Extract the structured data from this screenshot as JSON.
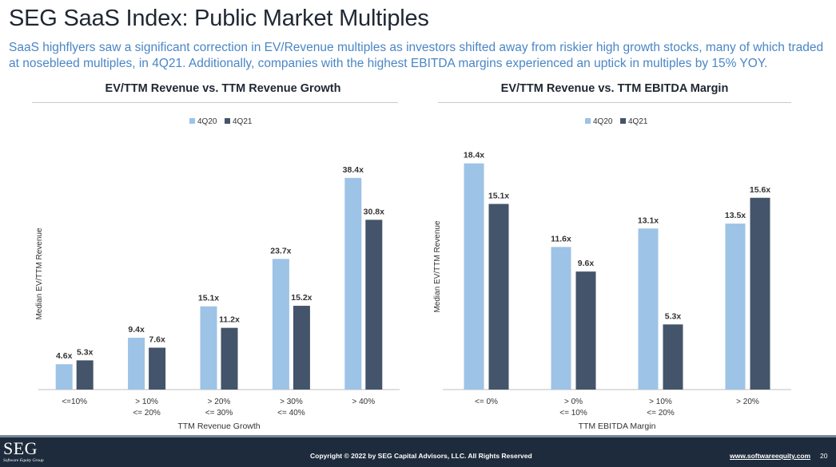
{
  "page": {
    "title": "SEG SaaS Index: Public Market Multiples",
    "subtitle": "SaaS highflyers saw a significant correction in EV/Revenue multiples as investors shifted away from riskier high growth stocks, many of which traded at nosebleed multiples, in 4Q21. Additionally, companies with the highest EBITDA margins experienced an uptick in multiples by 15% YOY."
  },
  "colors": {
    "series_4q20": "#9dc3e6",
    "series_4q21": "#44546a",
    "title_dark": "#1f2733",
    "subtitle_blue": "#4a86c5",
    "footer_bg": "#1e2b3c"
  },
  "footer": {
    "logo": "SEG",
    "logo_sub": "Software Equity Group",
    "copyright": "Copyright © 2022 by SEG Capital Advisors, LLC. All Rights Reserved",
    "website": "www.softwareequity.com",
    "page_number": "20"
  },
  "chart_data": [
    {
      "type": "bar",
      "title": "EV/TTM Revenue vs. TTM Revenue Growth",
      "xlabel": "TTM Revenue Growth",
      "ylabel": "Median EV/TTM Revenue",
      "legend_position": "top-center",
      "grid": false,
      "ylim": [
        0,
        42
      ],
      "categories": [
        [
          "<=10%"
        ],
        [
          "> 10%",
          "<= 20%"
        ],
        [
          "> 20%",
          "<= 30%"
        ],
        [
          "> 30%",
          "<= 40%"
        ],
        [
          "> 40%"
        ]
      ],
      "series": [
        {
          "name": "4Q20",
          "values": [
            4.6,
            9.4,
            15.1,
            23.7,
            38.4
          ],
          "labels": [
            "4.6x",
            "9.4x",
            "15.1x",
            "23.7x",
            "38.4x"
          ]
        },
        {
          "name": "4Q21",
          "values": [
            5.3,
            7.6,
            11.2,
            15.2,
            30.8
          ],
          "labels": [
            "5.3x",
            "7.6x",
            "11.2x",
            "15.2x",
            "30.8x"
          ]
        }
      ]
    },
    {
      "type": "bar",
      "title": "EV/TTM Revenue vs. TTM EBITDA Margin",
      "xlabel": "TTM EBITDA Margin",
      "ylabel": "Median EV/TTM Revenue",
      "legend_position": "top-center",
      "grid": false,
      "ylim": [
        0,
        20
      ],
      "categories": [
        [
          "<= 0%"
        ],
        [
          "> 0%",
          "<= 10%"
        ],
        [
          "> 10%",
          "<= 20%"
        ],
        [
          "> 20%"
        ]
      ],
      "series": [
        {
          "name": "4Q20",
          "values": [
            18.4,
            11.6,
            13.1,
            13.5
          ],
          "labels": [
            "18.4x",
            "11.6x",
            "13.1x",
            "13.5x"
          ]
        },
        {
          "name": "4Q21",
          "values": [
            15.1,
            9.6,
            5.3,
            15.6
          ],
          "labels": [
            "15.1x",
            "9.6x",
            "5.3x",
            "15.6x"
          ]
        }
      ]
    }
  ]
}
